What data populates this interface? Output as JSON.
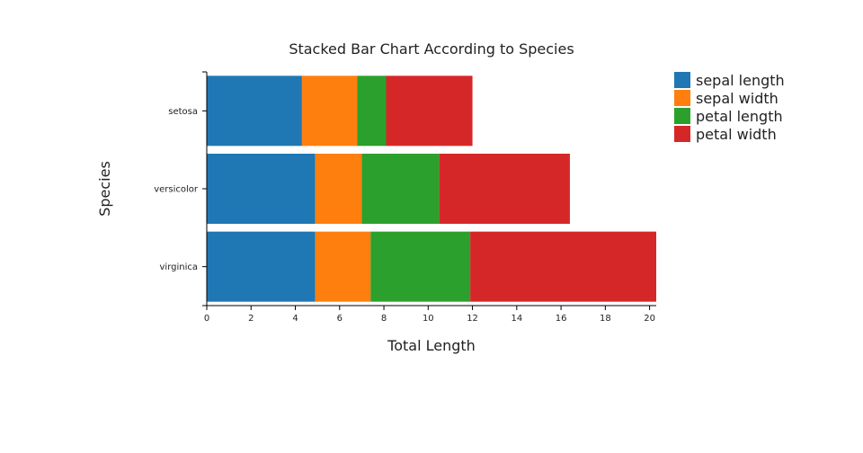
{
  "chart_data": {
    "type": "bar",
    "orientation": "horizontal",
    "stacked": true,
    "title": "Stacked Bar Chart According to Species",
    "xlabel": "Total Length",
    "ylabel": "Species",
    "xlim": [
      0,
      20.3
    ],
    "xticks": [
      0,
      2,
      4,
      6,
      8,
      10,
      12,
      14,
      16,
      18,
      20
    ],
    "categories": [
      "setosa",
      "versicolor",
      "virginica"
    ],
    "grid": false,
    "legend_position": "top-right",
    "series": [
      {
        "name": "sepal length",
        "color": "#1f77b4",
        "values": [
          4.3,
          4.9,
          4.9
        ]
      },
      {
        "name": "sepal width",
        "color": "#ff7f0e",
        "values": [
          2.5,
          2.1,
          2.5
        ]
      },
      {
        "name": "petal length",
        "color": "#2ca02c",
        "values": [
          1.3,
          3.5,
          4.5
        ]
      },
      {
        "name": "petal width",
        "color": "#d62728",
        "values": [
          3.9,
          5.9,
          8.4
        ]
      }
    ]
  }
}
